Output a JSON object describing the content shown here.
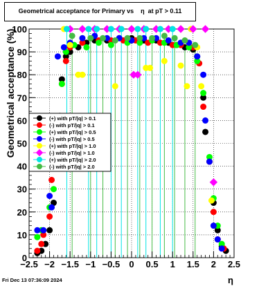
{
  "title": "Geometrical acceptance for Primary vs    η  at pT > 0.11",
  "footer": "Fri Dec 13 07:36:09 2024",
  "chart_data": {
    "type": "scatter",
    "title": "Geometrical acceptance for Primary vs    η  at pT > 0.11",
    "xlabel": "η",
    "ylabel": "Geometrical acceptance (%)",
    "xlim": [
      -2.5,
      2.5
    ],
    "ylim": [
      0,
      100
    ],
    "x_ticks": [
      -2.5,
      -2,
      -1.5,
      -1,
      -0.5,
      0,
      0.5,
      1,
      1.5,
      2,
      2.5
    ],
    "x_tick_labels": [
      "−2.5",
      "−2",
      "−1.5",
      "−1",
      "−0.5",
      "0",
      "0.5",
      "1",
      "1.5",
      "2",
      "2.5"
    ],
    "y_ticks": [
      0,
      10,
      20,
      30,
      40,
      50,
      60,
      70,
      80,
      90,
      100
    ],
    "y_tick_labels": [
      "0",
      "10",
      "20",
      "30",
      "40",
      "50",
      "60",
      "70",
      "80",
      "90",
      "100"
    ],
    "grid": true,
    "legend_position": "left-middle",
    "series": [
      {
        "name": "(+) with pT/|q| > 0.1",
        "color": "#000000",
        "marker": "circle",
        "points": [
          [
            -2.3,
            2
          ],
          [
            -2.2,
            3
          ],
          [
            -2.1,
            6
          ],
          [
            -2.0,
            12
          ],
          [
            -1.9,
            24
          ],
          [
            -1.8,
            40
          ],
          [
            -1.75,
            62
          ],
          [
            -1.7,
            78
          ],
          [
            -1.6,
            88
          ],
          [
            -1.5,
            90
          ],
          [
            -1.3,
            92
          ],
          [
            -1.1,
            94
          ],
          [
            -0.9,
            95
          ],
          [
            -0.6,
            95
          ],
          [
            -0.3,
            96
          ],
          [
            0.0,
            96
          ],
          [
            0.3,
            95
          ],
          [
            0.6,
            95
          ],
          [
            0.9,
            94
          ],
          [
            1.1,
            93
          ],
          [
            1.3,
            92
          ],
          [
            1.5,
            91
          ],
          [
            1.6,
            88
          ],
          [
            1.75,
            70
          ],
          [
            1.8,
            55
          ],
          [
            1.9,
            42
          ],
          [
            2.0,
            24
          ],
          [
            2.1,
            12
          ],
          [
            2.2,
            5
          ],
          [
            2.3,
            3
          ]
        ]
      },
      {
        "name": "(-) with pT/|q| > 0.1",
        "color": "#ff0000",
        "marker": "circle",
        "points": [
          [
            -2.3,
            3
          ],
          [
            -2.2,
            6
          ],
          [
            -2.15,
            10
          ],
          [
            -2.0,
            18
          ],
          [
            -1.95,
            34
          ],
          [
            -1.85,
            50
          ],
          [
            -1.7,
            76
          ],
          [
            -1.6,
            86
          ],
          [
            -1.5,
            92
          ],
          [
            -1.2,
            94
          ],
          [
            -0.8,
            95
          ],
          [
            -0.5,
            95
          ],
          [
            -0.2,
            95
          ],
          [
            0.1,
            95
          ],
          [
            0.4,
            94
          ],
          [
            0.7,
            94
          ],
          [
            1.0,
            93
          ],
          [
            1.2,
            93
          ],
          [
            1.5,
            92
          ],
          [
            1.65,
            85
          ],
          [
            1.75,
            66
          ],
          [
            1.9,
            42
          ],
          [
            2.0,
            20
          ],
          [
            2.1,
            8
          ],
          [
            2.25,
            4
          ]
        ]
      },
      {
        "name": "(+) with pT/|q| > 0.5",
        "color": "#00ff00",
        "marker": "circle",
        "points": [
          [
            -2.3,
            9
          ],
          [
            -2.2,
            12
          ],
          [
            -2.0,
            22
          ],
          [
            -1.9,
            30
          ],
          [
            -1.8,
            48
          ],
          [
            -1.7,
            76
          ],
          [
            -1.6,
            90
          ],
          [
            -1.4,
            93
          ],
          [
            -1.1,
            92
          ],
          [
            -0.8,
            94
          ],
          [
            -0.5,
            93
          ],
          [
            -0.1,
            94
          ],
          [
            0.2,
            94
          ],
          [
            0.5,
            95
          ],
          [
            0.8,
            94
          ],
          [
            1.1,
            93
          ],
          [
            1.4,
            92
          ],
          [
            1.6,
            86
          ],
          [
            1.75,
            72
          ],
          [
            1.9,
            44
          ],
          [
            2.0,
            26
          ],
          [
            2.1,
            14
          ],
          [
            2.2,
            6
          ]
        ]
      },
      {
        "name": "(-) with pT/|q| > 0.5",
        "color": "#0000ff",
        "marker": "circle",
        "points": [
          [
            -2.3,
            12
          ],
          [
            -2.15,
            12
          ],
          [
            -2.0,
            27
          ],
          [
            -1.95,
            22
          ],
          [
            -1.8,
            88
          ],
          [
            -1.65,
            92
          ],
          [
            -1.5,
            94
          ],
          [
            -1.2,
            96
          ],
          [
            -0.9,
            97
          ],
          [
            -0.6,
            96
          ],
          [
            -0.3,
            96
          ],
          [
            0.0,
            95
          ],
          [
            0.3,
            96
          ],
          [
            0.6,
            96
          ],
          [
            0.9,
            95
          ],
          [
            1.2,
            94
          ],
          [
            1.4,
            94
          ],
          [
            1.6,
            88
          ],
          [
            1.75,
            80
          ],
          [
            1.8,
            60
          ],
          [
            1.9,
            42
          ],
          [
            2.0,
            14
          ],
          [
            2.1,
            8
          ],
          [
            2.2,
            4
          ]
        ]
      },
      {
        "name": "(+) with pT/|q| > 1.0",
        "color": "#ffff00",
        "marker": "circle",
        "points": [
          [
            -1.65,
            100
          ],
          [
            -1.5,
            93
          ],
          [
            -1.3,
            80
          ],
          [
            -1.2,
            80
          ],
          [
            -0.4,
            75
          ],
          [
            0.35,
            83
          ],
          [
            0.45,
            83
          ],
          [
            0.8,
            86
          ],
          [
            1.2,
            84
          ],
          [
            1.35,
            75
          ],
          [
            1.45,
            100
          ],
          [
            1.6,
            92
          ],
          [
            1.7,
            75
          ],
          [
            1.95,
            25
          ]
        ]
      },
      {
        "name": "(-) with pT/|q| > 1.0",
        "color": "#ff00ff",
        "marker": "diamond",
        "points": [
          [
            -1.5,
            100
          ],
          [
            -1.2,
            100
          ],
          [
            -0.9,
            100
          ],
          [
            -0.6,
            100
          ],
          [
            -0.3,
            100
          ],
          [
            0.0,
            100
          ],
          [
            0.05,
            80
          ],
          [
            0.15,
            80
          ],
          [
            0.3,
            100
          ],
          [
            0.6,
            100
          ],
          [
            0.9,
            100
          ],
          [
            1.2,
            100
          ],
          [
            1.5,
            100
          ],
          [
            1.8,
            100
          ],
          [
            2.0,
            33
          ]
        ]
      },
      {
        "name": "(+) with pT/|q| > 2.0",
        "color": "#00e5e5",
        "marker": "circle",
        "points": [
          [
            -1.58,
            100
          ],
          [
            -1.05,
            100
          ],
          [
            -0.85,
            100
          ],
          [
            -0.5,
            100
          ],
          [
            -0.25,
            100
          ],
          [
            0.15,
            100
          ],
          [
            0.35,
            100
          ],
          [
            0.7,
            100
          ],
          [
            1.0,
            100
          ]
        ]
      },
      {
        "name": "(-) with pT/|q| > 2.0",
        "color": "#44bb44",
        "marker": "circle",
        "points": [
          [
            -1.45,
            97
          ],
          [
            -1.0,
            96
          ],
          [
            -0.7,
            96
          ],
          [
            -0.4,
            95
          ],
          [
            -0.1,
            96
          ],
          [
            0.2,
            96
          ],
          [
            0.5,
            96
          ],
          [
            0.8,
            97
          ],
          [
            1.05,
            96
          ],
          [
            1.3,
            95
          ],
          [
            1.55,
            93
          ]
        ]
      }
    ]
  }
}
